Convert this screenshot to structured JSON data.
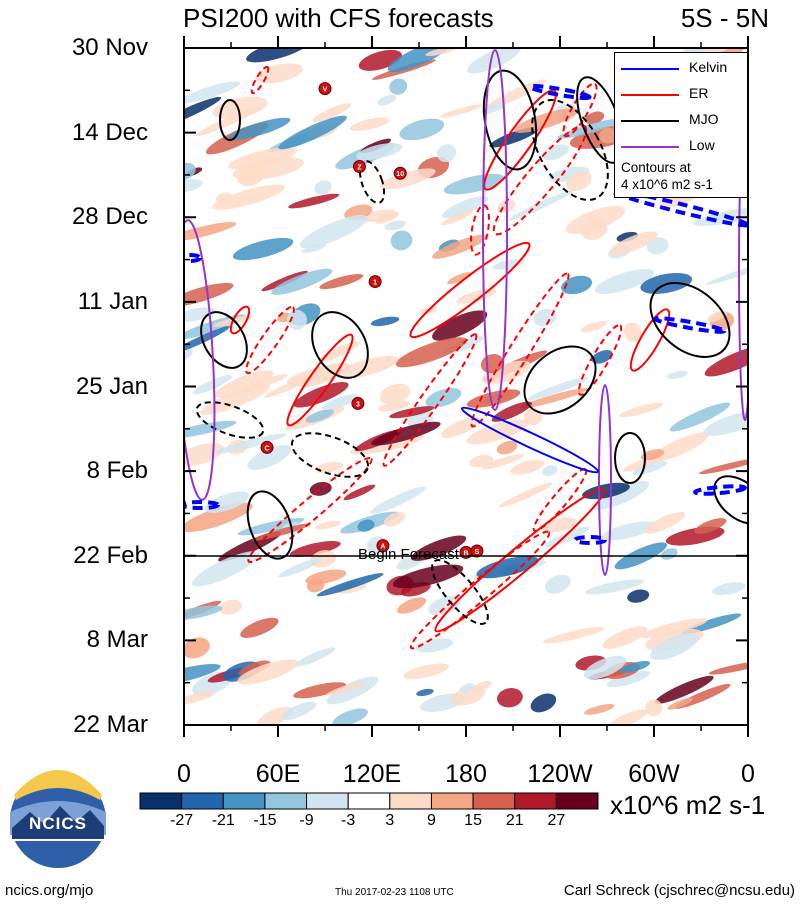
{
  "chart_data": {
    "type": "heatmap",
    "title": "PSI200 with CFS forecasts",
    "region": "5S - 5N",
    "y_axis": {
      "labels": [
        "30 Nov",
        "14 Dec",
        "28 Dec",
        "11 Jan",
        "25 Jan",
        "8 Feb",
        "22 Feb",
        "8 Mar",
        "22 Mar"
      ],
      "range": [
        "30 Nov",
        "22 Mar"
      ]
    },
    "x_axis": {
      "labels": [
        "0",
        "60E",
        "120E",
        "180",
        "120W",
        "60W",
        "0"
      ],
      "range_lon": [
        0,
        360
      ]
    },
    "colorbar": {
      "units": "x10^6 m2 s-1",
      "tick_labels": [
        "-27",
        "-21",
        "-15",
        "-9",
        "-3",
        "3",
        "9",
        "15",
        "21",
        "27"
      ],
      "colors": [
        "#08306b",
        "#2166ac",
        "#4393c3",
        "#92c5de",
        "#d1e5f0",
        "#ffffff",
        "#fddbc7",
        "#f4a582",
        "#d6604d",
        "#b2182b",
        "#67001f"
      ]
    },
    "legend": [
      {
        "label": "Kelvin",
        "color": "#0000ff"
      },
      {
        "label": "ER",
        "color": "#ff0000"
      },
      {
        "label": "MJO",
        "color": "#000000"
      },
      {
        "label": "Low",
        "color": "#9933cc"
      }
    ],
    "contour_note_line1": "Contours at",
    "contour_note_line2": "4 x10^6 m2 s-1",
    "forecast_label": "Begin Forecast",
    "forecast_start": "22 Feb",
    "cyclone_markers": [
      {
        "label": "V",
        "lon": 90,
        "date_frac": 0.06
      },
      {
        "label": "Z",
        "lon": 112,
        "date_frac": 0.175
      },
      {
        "label": "10",
        "lon": 138,
        "date_frac": 0.185
      },
      {
        "label": "1",
        "lon": 122,
        "date_frac": 0.345
      },
      {
        "label": "3",
        "lon": 111,
        "date_frac": 0.525
      },
      {
        "label": "C",
        "lon": 53,
        "date_frac": 0.59
      },
      {
        "label": "A",
        "lon": 127,
        "date_frac": 0.735
      },
      {
        "label": "B",
        "lon": 180,
        "date_frac": 0.745
      },
      {
        "label": "S",
        "lon": 187,
        "date_frac": 0.743
      }
    ]
  },
  "logo": {
    "text": "NCICS"
  },
  "footer": {
    "left": "ncics.org/mjo",
    "middle": "Thu 2017-02-23 1108 UTC",
    "right": "Carl Schreck (cjschrec@ncsu.edu)"
  }
}
